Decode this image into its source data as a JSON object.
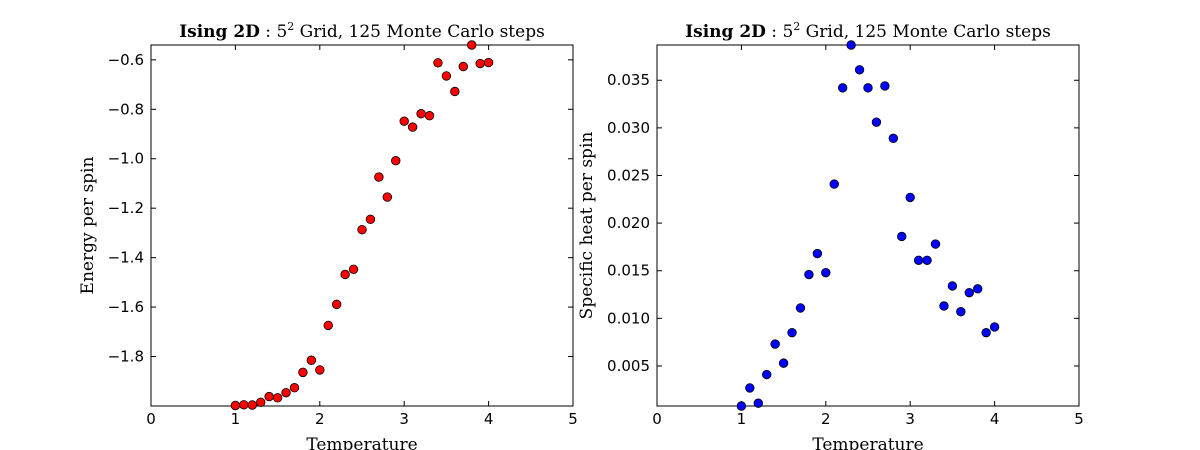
{
  "chart_data": [
    {
      "type": "scatter",
      "title": {
        "bold": "Ising 2D",
        "rest_before_sup": " : 5",
        "sup": "2",
        "rest_after_sup": " Grid, 125 Monte Carlo steps"
      },
      "xlabel": "Temperature",
      "ylabel": "Energy per spin",
      "xlim": [
        0,
        5
      ],
      "ylim": [
        -2.0,
        -0.54
      ],
      "xticks": [
        0,
        1,
        2,
        3,
        4,
        5
      ],
      "yticks": [
        -1.8,
        -1.6,
        -1.4,
        -1.2,
        -1.0,
        -0.8,
        -0.6
      ],
      "ytick_labels": [
        "−1.8",
        "−1.6",
        "−1.4",
        "−1.2",
        "−1.0",
        "−0.8",
        "−0.6"
      ],
      "marker_color": "#ff0000",
      "grid": false,
      "x": [
        1.0,
        1.1,
        1.2,
        1.3,
        1.4,
        1.5,
        1.6,
        1.7,
        1.8,
        1.9,
        2.0,
        2.1,
        2.2,
        2.3,
        2.4,
        2.5,
        2.6,
        2.7,
        2.8,
        2.9,
        3.0,
        3.1,
        3.2,
        3.3,
        3.4,
        3.5,
        3.6,
        3.7,
        3.8,
        3.9,
        4.0
      ],
      "y": [
        -1.998,
        -1.995,
        -1.996,
        -1.985,
        -1.962,
        -1.967,
        -1.946,
        -1.926,
        -1.864,
        -1.815,
        -1.854,
        -1.674,
        -1.589,
        -1.468,
        -1.447,
        -1.287,
        -1.245,
        -1.074,
        -1.155,
        -1.008,
        -0.848,
        -0.872,
        -0.818,
        -0.826,
        -0.612,
        -0.665,
        -0.728,
        -0.627,
        -0.54,
        -0.615,
        -0.611
      ]
    },
    {
      "type": "scatter",
      "title": {
        "bold": "Ising 2D",
        "rest_before_sup": " : 5",
        "sup": "2",
        "rest_after_sup": " Grid, 125 Monte Carlo steps"
      },
      "xlabel": "Temperature",
      "ylabel": "Specific heat per spin",
      "xlim": [
        0,
        5
      ],
      "ylim": [
        0.0008,
        0.0387
      ],
      "xticks": [
        0,
        1,
        2,
        3,
        4,
        5
      ],
      "yticks": [
        0.005,
        0.01,
        0.015,
        0.02,
        0.025,
        0.03,
        0.035
      ],
      "ytick_labels": [
        "0.005",
        "0.010",
        "0.015",
        "0.020",
        "0.025",
        "0.030",
        "0.035"
      ],
      "marker_color": "#0000ff",
      "grid": false,
      "x": [
        1.0,
        1.1,
        1.2,
        1.3,
        1.4,
        1.5,
        1.6,
        1.7,
        1.8,
        1.9,
        2.0,
        2.1,
        2.2,
        2.3,
        2.4,
        2.5,
        2.6,
        2.7,
        2.8,
        2.9,
        3.0,
        3.1,
        3.2,
        3.3,
        3.4,
        3.5,
        3.6,
        3.7,
        3.8,
        3.9,
        4.0
      ],
      "y": [
        0.0008,
        0.0027,
        0.0011,
        0.0041,
        0.0073,
        0.0053,
        0.0085,
        0.0111,
        0.0146,
        0.0168,
        0.0148,
        0.0241,
        0.0342,
        0.0387,
        0.0361,
        0.0342,
        0.0306,
        0.0344,
        0.0289,
        0.0186,
        0.0227,
        0.0161,
        0.0161,
        0.0178,
        0.0113,
        0.0134,
        0.0107,
        0.0127,
        0.0131,
        0.0085,
        0.0091
      ]
    }
  ]
}
